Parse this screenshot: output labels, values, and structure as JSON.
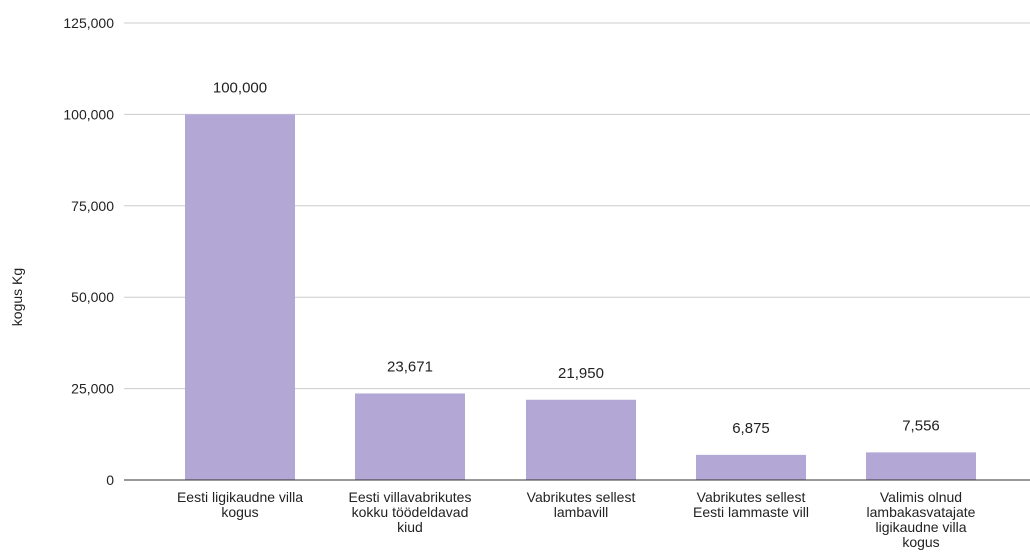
{
  "chart_data": {
    "type": "bar",
    "title": "",
    "xlabel": "",
    "ylabel": "kogus Kg",
    "ylim": [
      0,
      125000
    ],
    "y_ticks": [
      "0",
      "25,000",
      "50,000",
      "75,000",
      "100,000",
      "125,000"
    ],
    "y_tick_values": [
      0,
      25000,
      50000,
      75000,
      100000,
      125000
    ],
    "categories": [
      [
        "Eesti ligikaudne villa",
        "kogus"
      ],
      [
        "Eesti villavabrikutes",
        "kokku töödeldavad",
        "kiud"
      ],
      [
        "Vabrikutes sellest",
        "lambavill"
      ],
      [
        "Vabrikutes sellest",
        "Eesti lammaste vill"
      ],
      [
        "Valimis olnud",
        "lambakasvatajate",
        "ligikaudne villa",
        "kogus"
      ]
    ],
    "values": [
      100000,
      23671,
      21950,
      6875,
      7556
    ],
    "data_labels": [
      "100,000",
      "23,671",
      "21,950",
      "6,875",
      "7,556"
    ],
    "grid": true,
    "legend": "none",
    "bar_color": "#b3a7d6",
    "grid_color": "#cccccc",
    "axis_color": "#333333"
  }
}
